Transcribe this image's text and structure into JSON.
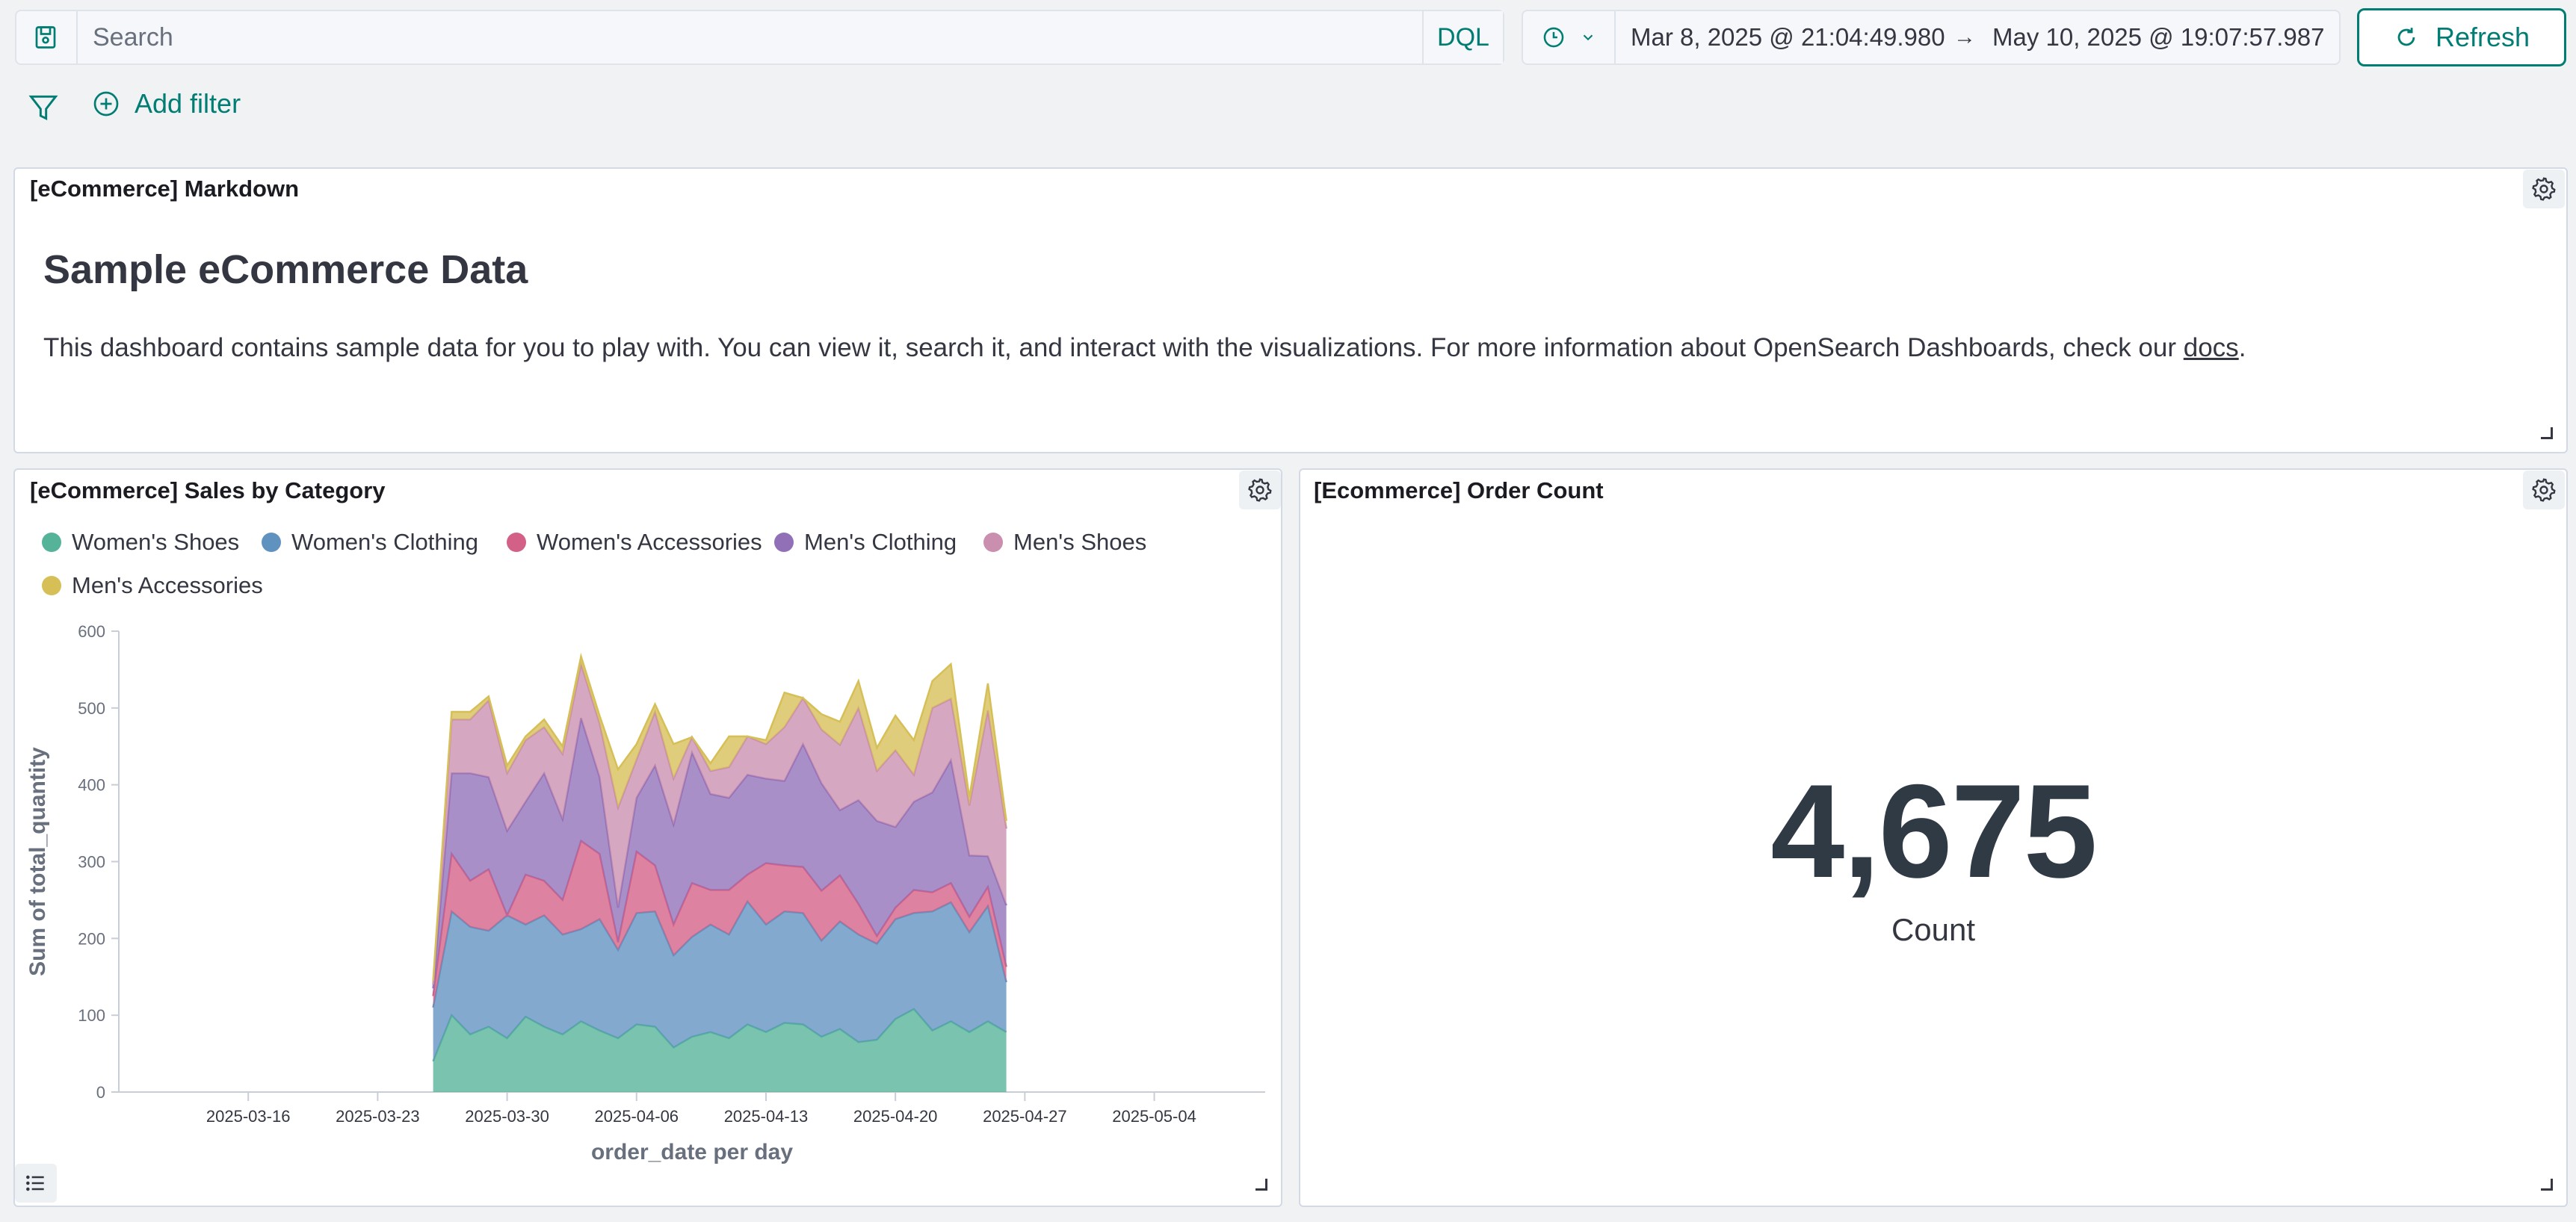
{
  "query_bar": {
    "search_placeholder": "Search",
    "language_label": "DQL",
    "date_start": "Mar 8, 2025 @ 21:04:49.980",
    "date_arrow": "→",
    "date_end": "May 10, 2025 @ 19:07:57.987",
    "refresh_label": "Refresh"
  },
  "filter_bar": {
    "add_filter_label": "Add filter"
  },
  "markdown_panel": {
    "title": "[eCommerce] Markdown",
    "heading": "Sample eCommerce Data",
    "paragraph": "This dashboard contains sample data for you to play with. You can view it, search it, and interact with the visualizations. For more information about OpenSearch Dashboards, check our ",
    "link_text": "docs",
    "paragraph_end": "."
  },
  "sales_panel": {
    "title": "[eCommerce] Sales by Category"
  },
  "order_count_panel": {
    "title": "[Ecommerce] Order Count",
    "value": "4,675",
    "label": "Count"
  },
  "colors": {
    "accent": "#017d73",
    "womens_shoes": "#54b399",
    "womens_clothing": "#6092c0",
    "womens_accessories": "#d36086",
    "mens_clothing": "#9170b8",
    "mens_shoes": "#ca8eae",
    "mens_accessories": "#d6bf57"
  },
  "chart_data": {
    "type": "area",
    "stacked": true,
    "xlabel": "order_date per day",
    "ylabel": "Sum of total_quantity",
    "ylim": [
      0,
      600
    ],
    "yticks": [
      0,
      100,
      200,
      300,
      400,
      500,
      600
    ],
    "xticks": [
      "2025-03-16",
      "2025-03-23",
      "2025-03-30",
      "2025-04-06",
      "2025-04-13",
      "2025-04-20",
      "2025-04-27",
      "2025-05-04"
    ],
    "xlim": [
      "2025-03-09",
      "2025-05-10"
    ],
    "x": [
      "2025-03-26",
      "2025-03-27",
      "2025-03-28",
      "2025-03-29",
      "2025-03-30",
      "2025-03-31",
      "2025-04-01",
      "2025-04-02",
      "2025-04-03",
      "2025-04-04",
      "2025-04-05",
      "2025-04-06",
      "2025-04-07",
      "2025-04-08",
      "2025-04-09",
      "2025-04-10",
      "2025-04-11",
      "2025-04-12",
      "2025-04-13",
      "2025-04-14",
      "2025-04-15",
      "2025-04-16",
      "2025-04-17",
      "2025-04-18",
      "2025-04-19",
      "2025-04-20",
      "2025-04-21",
      "2025-04-22",
      "2025-04-23",
      "2025-04-24",
      "2025-04-25",
      "2025-04-26"
    ],
    "series": [
      {
        "name": "Women's Shoes",
        "color": "#54b399",
        "values": [
          40,
          100,
          75,
          85,
          70,
          98,
          85,
          75,
          92,
          80,
          70,
          88,
          85,
          58,
          72,
          78,
          70,
          88,
          78,
          90,
          88,
          72,
          82,
          65,
          68,
          95,
          108,
          80,
          92,
          78,
          92,
          78
        ]
      },
      {
        "name": "Women's Clothing",
        "color": "#6092c0",
        "values": [
          70,
          135,
          140,
          125,
          160,
          120,
          145,
          130,
          120,
          145,
          115,
          145,
          150,
          120,
          130,
          140,
          135,
          160,
          140,
          145,
          145,
          125,
          140,
          140,
          125,
          130,
          125,
          155,
          155,
          130,
          150,
          65
        ]
      },
      {
        "name": "Women's Accessories",
        "color": "#d36086",
        "values": [
          15,
          75,
          60,
          80,
          0,
          65,
          45,
          45,
          115,
          85,
          10,
          80,
          60,
          40,
          70,
          45,
          58,
          35,
          80,
          60,
          60,
          65,
          60,
          40,
          10,
          15,
          30,
          25,
          25,
          20,
          25,
          20
        ]
      },
      {
        "name": "Men's Clothing",
        "color": "#9170b8",
        "values": [
          10,
          105,
          140,
          120,
          110,
          95,
          140,
          105,
          160,
          100,
          45,
          70,
          130,
          130,
          170,
          125,
          120,
          130,
          110,
          110,
          160,
          140,
          85,
          135,
          150,
          105,
          115,
          130,
          160,
          80,
          40,
          80
        ]
      },
      {
        "name": "Men's Shoes",
        "color": "#ca8eae",
        "values": [
          5,
          70,
          70,
          100,
          75,
          80,
          60,
          85,
          70,
          70,
          130,
          50,
          70,
          60,
          20,
          30,
          40,
          50,
          45,
          70,
          60,
          70,
          85,
          120,
          65,
          100,
          35,
          110,
          80,
          65,
          190,
          100
        ]
      },
      {
        "name": "Men's Accessories",
        "color": "#d6bf57",
        "values": [
          5,
          10,
          10,
          5,
          10,
          5,
          10,
          10,
          10,
          10,
          50,
          20,
          10,
          45,
          0,
          10,
          40,
          0,
          5,
          45,
          0,
          20,
          30,
          35,
          30,
          45,
          45,
          35,
          45,
          10,
          35,
          10
        ]
      }
    ]
  }
}
